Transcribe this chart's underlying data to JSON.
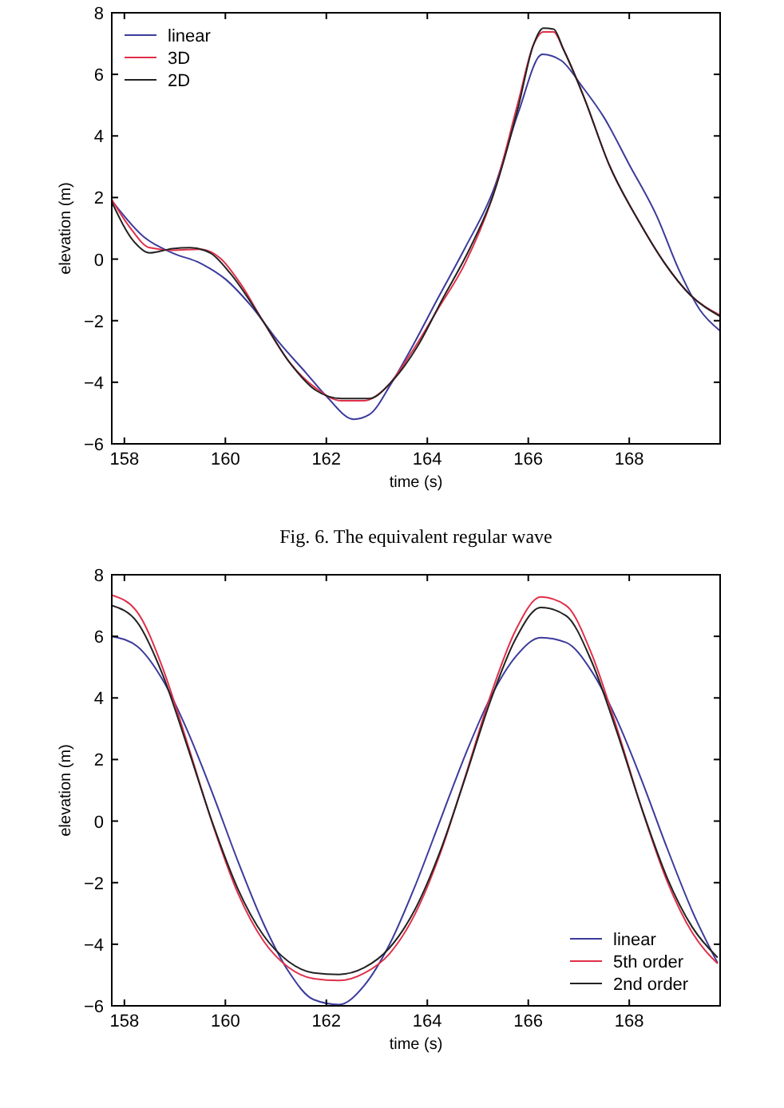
{
  "chart_data": [
    {
      "type": "line",
      "xlabel": "time (s)",
      "ylabel": "elevation (m)",
      "xlim": [
        157.75,
        169.8
      ],
      "ylim": [
        -6,
        8
      ],
      "xticks": [
        158,
        160,
        162,
        164,
        166,
        168
      ],
      "yticks": [
        {
          "value": -6,
          "label": "−6"
        },
        {
          "value": -4,
          "label": "−4"
        },
        {
          "value": -2,
          "label": "−2"
        },
        0,
        2,
        4,
        6,
        8
      ],
      "legend": "top left",
      "grid": false,
      "annotations": [
        "Fig. 6. The equivalent regular wave"
      ],
      "series": [
        {
          "name": "linear",
          "color": "#3b3b9c",
          "x": [
            157.75,
            158.4,
            158.95,
            159.5,
            160.0,
            160.5,
            161.06,
            161.6,
            162.0,
            162.54,
            162.85,
            163.3,
            163.7,
            164.2,
            164.75,
            165.3,
            165.8,
            166.28,
            166.65,
            167.07,
            167.5,
            168.0,
            168.55,
            168.97,
            169.4,
            169.8
          ],
          "values": [
            1.9,
            0.7,
            0.2,
            -0.13,
            -0.65,
            -1.5,
            -2.7,
            -3.7,
            -4.45,
            -5.2,
            -5.05,
            -4.0,
            -2.85,
            -1.3,
            0.37,
            2.2,
            4.75,
            6.65,
            6.45,
            5.6,
            4.6,
            3.07,
            1.38,
            -0.3,
            -1.65,
            -2.33
          ]
        },
        {
          "name": "3D",
          "color": "#e0304a",
          "x": [
            157.75,
            158.1,
            158.5,
            158.95,
            159.5,
            159.9,
            160.3,
            160.74,
            161.27,
            161.8,
            162.3,
            162.75,
            163.17,
            163.7,
            164.2,
            164.75,
            165.3,
            165.8,
            166.1,
            166.3,
            166.5,
            166.7,
            167.1,
            167.6,
            168.2,
            168.7,
            169.2,
            169.8
          ],
          "values": [
            1.93,
            1.05,
            0.37,
            0.29,
            0.32,
            0.03,
            -0.8,
            -2.0,
            -3.35,
            -4.2,
            -4.6,
            -4.6,
            -4.2,
            -3.0,
            -1.65,
            -0.13,
            2.06,
            5.1,
            6.95,
            7.38,
            7.38,
            6.8,
            5.27,
            3.07,
            1.2,
            -0.13,
            -1.15,
            -1.82
          ]
        },
        {
          "name": "2D",
          "color": "#222222",
          "x": [
            157.75,
            158.2,
            158.5,
            158.95,
            159.3,
            159.7,
            160.1,
            160.74,
            161.27,
            161.8,
            162.3,
            162.85,
            163.27,
            163.8,
            164.3,
            164.85,
            165.3,
            165.8,
            166.1,
            166.3,
            166.5,
            166.7,
            167.1,
            167.6,
            168.2,
            168.7,
            169.2,
            169.8
          ],
          "values": [
            1.85,
            0.55,
            0.2,
            0.34,
            0.37,
            0.2,
            -0.47,
            -2.0,
            -3.35,
            -4.27,
            -4.53,
            -4.53,
            -4.02,
            -2.85,
            -1.3,
            0.37,
            2.06,
            4.93,
            6.95,
            7.5,
            7.47,
            6.8,
            5.27,
            3.07,
            1.2,
            -0.13,
            -1.15,
            -1.86
          ]
        }
      ]
    },
    {
      "type": "line",
      "xlabel": "time (s)",
      "ylabel": "elevation (m)",
      "xlim": [
        157.75,
        169.8
      ],
      "ylim": [
        -6,
        8
      ],
      "xticks": [
        158,
        160,
        162,
        164,
        166,
        168
      ],
      "yticks": [
        {
          "value": -6,
          "label": "−6"
        },
        {
          "value": -4,
          "label": "−4"
        },
        {
          "value": -2,
          "label": "−2"
        },
        0,
        2,
        4,
        6,
        8
      ],
      "legend": "bottom right",
      "grid": false,
      "x": [
        157.75,
        158.25,
        158.75,
        159.25,
        159.75,
        160.25,
        160.75,
        161.25,
        161.75,
        162.25,
        162.75,
        163.25,
        163.75,
        164.25,
        164.75,
        165.25,
        165.75,
        166.25,
        166.75,
        167.25,
        167.75,
        168.25,
        168.75,
        169.25,
        169.75
      ],
      "series": [
        {
          "name": "linear",
          "color": "#3b3b9c",
          "values": [
            6.0,
            5.68,
            4.61,
            2.93,
            0.88,
            -1.31,
            -3.31,
            -4.88,
            -5.8,
            -5.96,
            -5.34,
            -4.01,
            -2.14,
            0,
            2.14,
            4.01,
            5.34,
            5.96,
            5.8,
            4.88,
            3.31,
            1.31,
            -0.88,
            -2.93,
            -4.61
          ]
        },
        {
          "name": "5th order",
          "color": "#e0304a",
          "values": [
            7.34,
            6.8,
            5.01,
            2.51,
            -0.11,
            -2.35,
            -3.88,
            -4.75,
            -5.12,
            -5.18,
            -4.94,
            -4.31,
            -3.04,
            -1.08,
            1.44,
            4.07,
            6.2,
            7.28,
            7.0,
            5.45,
            3.04,
            0.39,
            -1.95,
            -3.63,
            -4.63
          ]
        },
        {
          "name": "2nd order",
          "color": "#222222",
          "values": [
            7.0,
            6.47,
            4.79,
            2.41,
            -0.08,
            -2.21,
            -3.7,
            -4.56,
            -4.93,
            -4.98,
            -4.76,
            -4.12,
            -2.89,
            -1,
            1.4,
            3.9,
            5.92,
            6.94,
            6.67,
            5.2,
            2.92,
            0.4,
            -1.84,
            -3.45,
            -4.43
          ]
        }
      ]
    }
  ]
}
